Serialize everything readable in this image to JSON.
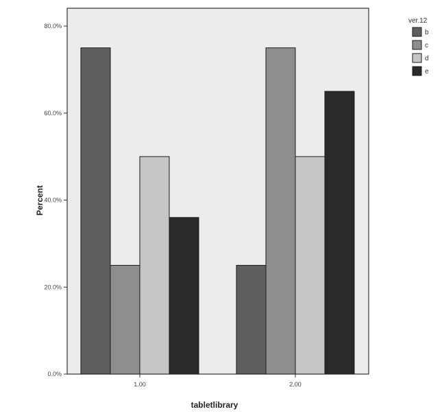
{
  "chart_data": {
    "type": "bar",
    "categories": [
      "1.00",
      "2.00"
    ],
    "xlabel": "tabletlibrary",
    "ylabel": "Percent",
    "ylim": [
      0,
      80
    ],
    "yticks": [
      {
        "value": 0,
        "label": "0.0%"
      },
      {
        "value": 20,
        "label": "20.0%"
      },
      {
        "value": 40,
        "label": "40.0%"
      },
      {
        "value": 60,
        "label": "60.0%"
      },
      {
        "value": 80,
        "label": "80.0%"
      }
    ],
    "legend": {
      "title": "ver.12",
      "position": "top-right"
    },
    "series": [
      {
        "name": "b",
        "color": "#5f5f5f",
        "values": [
          75,
          25
        ]
      },
      {
        "name": "c",
        "color": "#8e8e8e",
        "values": [
          25,
          75
        ]
      },
      {
        "name": "d",
        "color": "#c6c6c6",
        "values": [
          50,
          50
        ]
      },
      {
        "name": "e",
        "color": "#2a2a2a",
        "values": [
          36,
          65
        ]
      }
    ],
    "plot_background": "#ececec",
    "grid": false
  }
}
